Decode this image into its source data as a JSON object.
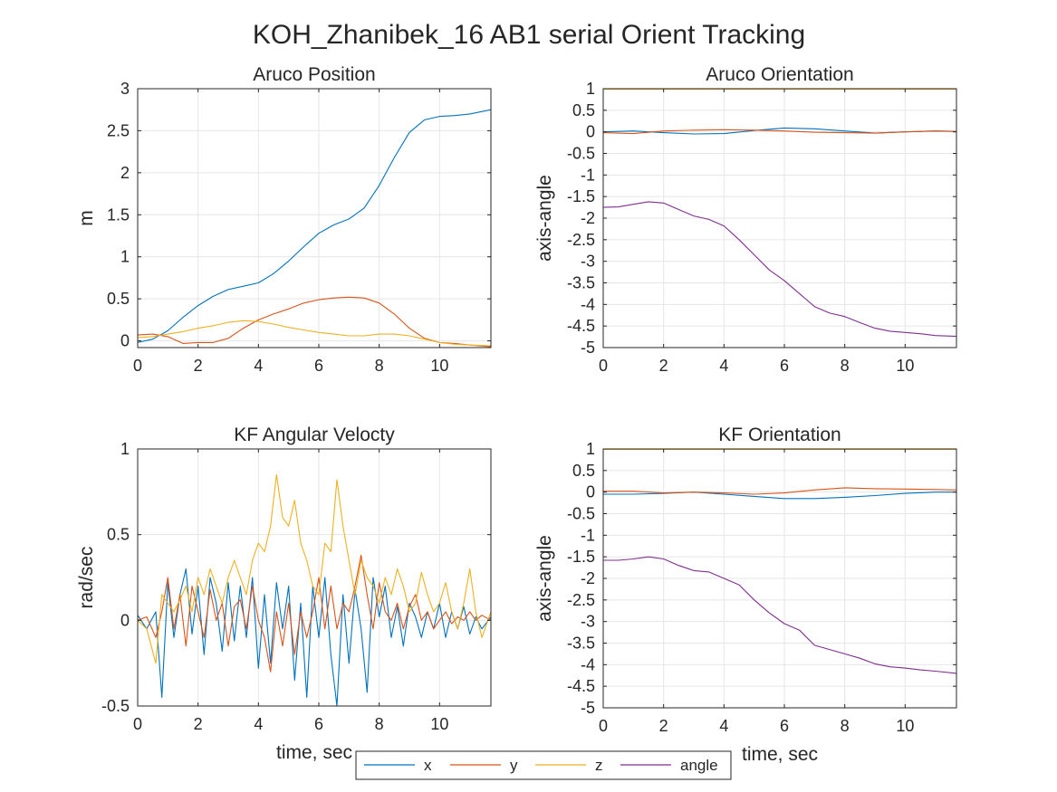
{
  "figure": {
    "suptitle": "KOH_Zhanibek_16 AB1 serial Orient Tracking"
  },
  "legend": {
    "placement": "bottom-center",
    "entries": [
      "x",
      "y",
      "z",
      "angle"
    ]
  },
  "colors": {
    "x": "#0072BD",
    "y": "#D95319",
    "z": "#EDB120",
    "angle": "#7E2F8E",
    "grid": "#e6e6e6",
    "axis": "#262626"
  },
  "chart_data": [
    {
      "type": "line",
      "title": "Aruco Position",
      "xlabel": "",
      "ylabel": "m",
      "xlim": [
        0,
        11.7
      ],
      "ylim": [
        -0.08,
        3
      ],
      "grid": true,
      "xticks": [
        0,
        2,
        4,
        6,
        8,
        10
      ],
      "xtick_labels": [
        "0",
        "2",
        "4",
        "6",
        "8",
        "10"
      ],
      "yticks": [
        0,
        0.5,
        1,
        1.5,
        2,
        2.5,
        3
      ],
      "ytick_labels": [
        "0",
        "0.5",
        "1",
        "1.5",
        "2",
        "2.5",
        "3"
      ],
      "series": [
        {
          "key": "x",
          "x": [
            0,
            0.5,
            1,
            1.5,
            2,
            2.5,
            3,
            3.5,
            4,
            4.5,
            5,
            5.5,
            6,
            6.5,
            7,
            7.5,
            8,
            8.5,
            9,
            9.5,
            10,
            10.5,
            11,
            11.7
          ],
          "y": [
            -0.02,
            0.02,
            0.12,
            0.28,
            0.42,
            0.53,
            0.61,
            0.65,
            0.69,
            0.8,
            0.95,
            1.12,
            1.28,
            1.38,
            1.45,
            1.58,
            1.85,
            2.18,
            2.48,
            2.63,
            2.67,
            2.68,
            2.7,
            2.75
          ]
        },
        {
          "key": "y",
          "x": [
            0,
            0.5,
            1,
            1.5,
            2,
            2.5,
            3,
            3.5,
            4,
            4.5,
            5,
            5.5,
            6,
            6.5,
            7,
            7.5,
            8,
            8.5,
            9,
            9.5,
            10,
            10.5,
            11,
            11.7
          ],
          "y": [
            0.07,
            0.08,
            0.05,
            -0.03,
            -0.02,
            -0.02,
            0.03,
            0.15,
            0.25,
            0.32,
            0.38,
            0.45,
            0.49,
            0.51,
            0.52,
            0.51,
            0.45,
            0.32,
            0.15,
            0.03,
            -0.02,
            -0.03,
            -0.05,
            -0.07
          ]
        },
        {
          "key": "z",
          "x": [
            0,
            0.5,
            1,
            1.5,
            2,
            2.5,
            3,
            3.5,
            4,
            4.5,
            5,
            5.5,
            6,
            6.5,
            7,
            7.5,
            8,
            8.5,
            9,
            9.5,
            10,
            10.5,
            11,
            11.7
          ],
          "y": [
            0.04,
            0.05,
            0.08,
            0.11,
            0.15,
            0.18,
            0.22,
            0.24,
            0.23,
            0.2,
            0.16,
            0.13,
            0.1,
            0.08,
            0.06,
            0.06,
            0.08,
            0.08,
            0.06,
            0.02,
            -0.02,
            -0.04,
            -0.05,
            -0.06
          ]
        }
      ]
    },
    {
      "type": "line",
      "title": "Aruco Orientation",
      "xlabel": "",
      "ylabel": "axis-angle",
      "xlim": [
        0,
        11.7
      ],
      "ylim": [
        -5,
        1
      ],
      "grid": true,
      "xticks": [
        0,
        2,
        4,
        6,
        8,
        10
      ],
      "xtick_labels": [
        "0",
        "2",
        "4",
        "6",
        "8",
        "10"
      ],
      "yticks": [
        1,
        0.5,
        0,
        -0.5,
        -1,
        -1.5,
        -2,
        -2.5,
        -3,
        -3.5,
        -4,
        -4.5,
        -5
      ],
      "ytick_labels": [
        "1",
        "0.5",
        "0",
        "-0.5",
        "-1",
        "-1.5",
        "-2",
        "-2.5",
        "-3",
        "-3.5",
        "-4",
        "-4.5",
        "-5"
      ],
      "series": [
        {
          "key": "x",
          "x": [
            0,
            1,
            2,
            3,
            4,
            5,
            6,
            7,
            8,
            9,
            10,
            11,
            11.7
          ],
          "y": [
            0.0,
            0.02,
            -0.02,
            -0.05,
            -0.04,
            0.03,
            0.09,
            0.07,
            0.02,
            -0.03,
            0.0,
            0.02,
            0.01
          ]
        },
        {
          "key": "y",
          "x": [
            0,
            1,
            2,
            3,
            4,
            5,
            6,
            7,
            8,
            9,
            10,
            11,
            11.7
          ],
          "y": [
            -0.02,
            -0.04,
            0.02,
            0.04,
            0.05,
            0.04,
            0.02,
            -0.01,
            -0.02,
            -0.03,
            0.0,
            0.02,
            0.01
          ]
        },
        {
          "key": "z",
          "x": [
            0,
            2,
            4,
            6,
            8,
            10,
            11.7
          ],
          "y": [
            0.99,
            0.99,
            0.99,
            0.99,
            0.99,
            0.99,
            0.99
          ]
        },
        {
          "key": "angle",
          "x": [
            0,
            0.5,
            1,
            1.5,
            2,
            2.5,
            3,
            3.5,
            4,
            4.5,
            5,
            5.5,
            6,
            6.5,
            7,
            7.5,
            8,
            8.5,
            9,
            9.5,
            10,
            10.5,
            11,
            11.7
          ],
          "y": [
            -1.75,
            -1.74,
            -1.68,
            -1.62,
            -1.65,
            -1.8,
            -1.95,
            -2.03,
            -2.18,
            -2.5,
            -2.85,
            -3.2,
            -3.45,
            -3.75,
            -4.05,
            -4.2,
            -4.28,
            -4.42,
            -4.55,
            -4.62,
            -4.65,
            -4.68,
            -4.72,
            -4.74
          ]
        }
      ]
    },
    {
      "type": "line",
      "title": "KF Angular Velocty",
      "xlabel": "time, sec",
      "ylabel": "rad/sec",
      "xlim": [
        0,
        11.7
      ],
      "ylim": [
        -0.5,
        1
      ],
      "grid": true,
      "xticks": [
        0,
        2,
        4,
        6,
        8,
        10
      ],
      "xtick_labels": [
        "0",
        "2",
        "4",
        "6",
        "8",
        "10"
      ],
      "yticks": [
        -0.5,
        0,
        0.5,
        1
      ],
      "ytick_labels": [
        "-0.5",
        "0",
        "0.5",
        "1"
      ],
      "series": [
        {
          "key": "x",
          "x": [
            0,
            0.3,
            0.6,
            0.8,
            1.0,
            1.2,
            1.4,
            1.6,
            1.8,
            2.0,
            2.2,
            2.4,
            2.6,
            2.8,
            3.0,
            3.2,
            3.4,
            3.6,
            3.8,
            4.0,
            4.2,
            4.4,
            4.6,
            4.8,
            5.0,
            5.2,
            5.4,
            5.6,
            5.8,
            6.0,
            6.2,
            6.4,
            6.6,
            6.8,
            7.0,
            7.2,
            7.4,
            7.6,
            7.8,
            8.0,
            8.2,
            8.4,
            8.6,
            8.8,
            9.0,
            9.2,
            9.4,
            9.6,
            9.8,
            10.0,
            10.2,
            10.4,
            10.6,
            10.8,
            11.0,
            11.2,
            11.4,
            11.7
          ],
          "y": [
            0.03,
            -0.05,
            0.05,
            -0.45,
            0.22,
            -0.1,
            0.15,
            0.3,
            -0.08,
            0.2,
            -0.2,
            0.25,
            0.1,
            -0.18,
            0.22,
            -0.12,
            0.2,
            -0.1,
            0.25,
            -0.28,
            0.15,
            -0.25,
            0.22,
            -0.05,
            0.2,
            -0.35,
            0.1,
            -0.45,
            0.2,
            -0.1,
            0.25,
            -0.2,
            -0.5,
            0.15,
            -0.25,
            0.18,
            -0.05,
            -0.42,
            0.25,
            0.02,
            0.2,
            -0.1,
            0.08,
            -0.15,
            0.1,
            0.02,
            -0.1,
            0.05,
            -0.05,
            0.1,
            -0.1,
            0.05,
            -0.05,
            0.08,
            -0.08,
            0.02,
            -0.05,
            0.02
          ]
        },
        {
          "key": "y",
          "x": [
            0,
            0.3,
            0.6,
            0.8,
            1.0,
            1.2,
            1.4,
            1.6,
            1.8,
            2.0,
            2.2,
            2.4,
            2.6,
            2.8,
            3.0,
            3.2,
            3.4,
            3.6,
            3.8,
            4.0,
            4.2,
            4.4,
            4.6,
            4.8,
            5.0,
            5.2,
            5.4,
            5.6,
            5.8,
            6.0,
            6.2,
            6.4,
            6.6,
            6.8,
            7.0,
            7.2,
            7.4,
            7.6,
            7.8,
            8.0,
            8.2,
            8.4,
            8.6,
            8.8,
            9.0,
            9.2,
            9.4,
            9.6,
            9.8,
            10.0,
            10.2,
            10.4,
            10.6,
            10.8,
            11.0,
            11.2,
            11.4,
            11.7
          ],
          "y": [
            0.0,
            0.02,
            -0.1,
            0.05,
            0.25,
            -0.05,
            0.15,
            -0.15,
            0.2,
            0.05,
            -0.1,
            0.18,
            0.0,
            0.1,
            -0.15,
            0.08,
            0.12,
            -0.05,
            0.2,
            0.0,
            -0.1,
            -0.3,
            0.05,
            -0.15,
            0.1,
            -0.2,
            0.05,
            -0.1,
            0.05,
            0.25,
            -0.05,
            0.2,
            -0.05,
            0.1,
            0.05,
            0.2,
            0.38,
            0.15,
            -0.05,
            0.22,
            0.05,
            0.0,
            0.1,
            -0.05,
            0.08,
            0.15,
            0.0,
            0.05,
            -0.05,
            0.0,
            0.05,
            -0.02,
            0.02,
            0.0,
            0.05,
            0.0,
            0.03,
            0.0
          ]
        },
        {
          "key": "z",
          "x": [
            0,
            0.3,
            0.6,
            0.8,
            1.0,
            1.2,
            1.4,
            1.6,
            1.8,
            2.0,
            2.2,
            2.4,
            2.6,
            2.8,
            3.0,
            3.2,
            3.4,
            3.6,
            3.8,
            4.0,
            4.2,
            4.4,
            4.6,
            4.8,
            5.0,
            5.2,
            5.4,
            5.6,
            5.8,
            6.0,
            6.2,
            6.4,
            6.6,
            6.8,
            7.0,
            7.2,
            7.4,
            7.6,
            7.8,
            8.0,
            8.2,
            8.4,
            8.6,
            8.8,
            9.0,
            9.2,
            9.4,
            9.6,
            9.8,
            10.0,
            10.2,
            10.4,
            10.6,
            10.8,
            11.0,
            11.2,
            11.4,
            11.7
          ],
          "y": [
            0.0,
            -0.05,
            -0.25,
            0.15,
            0.1,
            0.05,
            0.12,
            0.2,
            0.05,
            0.25,
            0.15,
            0.3,
            0.2,
            0.1,
            0.25,
            0.35,
            0.25,
            0.15,
            0.35,
            0.45,
            0.4,
            0.55,
            0.85,
            0.6,
            0.55,
            0.7,
            0.45,
            0.35,
            0.2,
            0.15,
            0.45,
            0.4,
            0.82,
            0.55,
            0.35,
            0.15,
            0.35,
            0.25,
            0.2,
            0.1,
            0.25,
            0.15,
            0.3,
            0.2,
            0.05,
            0.1,
            0.28,
            0.15,
            0.05,
            0.1,
            0.22,
            0.05,
            -0.05,
            0.1,
            0.3,
            0.05,
            -0.1,
            0.05
          ]
        }
      ]
    },
    {
      "type": "line",
      "title": "KF Orientation",
      "xlabel": "time, sec",
      "ylabel": "axis-angle",
      "xlim": [
        0,
        11.7
      ],
      "ylim": [
        -5,
        1
      ],
      "grid": true,
      "xticks": [
        0,
        2,
        4,
        6,
        8,
        10
      ],
      "xtick_labels": [
        "0",
        "2",
        "4",
        "6",
        "8",
        "10"
      ],
      "yticks": [
        1,
        0.5,
        0,
        -0.5,
        -1,
        -1.5,
        -2,
        -2.5,
        -3,
        -3.5,
        -4,
        -4.5,
        -5
      ],
      "ytick_labels": [
        "1",
        "0.5",
        "0",
        "-0.5",
        "-1",
        "-1.5",
        "-2",
        "-2.5",
        "-3",
        "-3.5",
        "-4",
        "-4.5",
        "-5"
      ],
      "series": [
        {
          "key": "x",
          "x": [
            0,
            1,
            2,
            3,
            4,
            5,
            6,
            7,
            8,
            9,
            10,
            11,
            11.7
          ],
          "y": [
            -0.05,
            -0.05,
            -0.03,
            0.0,
            -0.05,
            -0.1,
            -0.15,
            -0.15,
            -0.12,
            -0.08,
            -0.03,
            0.0,
            0.0
          ]
        },
        {
          "key": "y",
          "x": [
            0,
            1,
            2,
            3,
            4,
            5,
            6,
            7,
            8,
            9,
            10,
            11,
            11.7
          ],
          "y": [
            0.02,
            0.02,
            -0.02,
            0.0,
            -0.02,
            -0.05,
            -0.02,
            0.05,
            0.1,
            0.08,
            0.07,
            0.06,
            0.05
          ]
        },
        {
          "key": "z",
          "x": [
            0,
            2,
            4,
            6,
            8,
            10,
            11.7
          ],
          "y": [
            0.99,
            0.99,
            0.99,
            0.99,
            0.99,
            0.99,
            0.99
          ]
        },
        {
          "key": "angle",
          "x": [
            0,
            0.5,
            1,
            1.5,
            2,
            2.5,
            3,
            3.5,
            4,
            4.5,
            5,
            5.5,
            6,
            6.5,
            7,
            7.5,
            8,
            8.5,
            9,
            9.5,
            10,
            10.5,
            11,
            11.7
          ],
          "y": [
            -1.58,
            -1.58,
            -1.55,
            -1.5,
            -1.55,
            -1.7,
            -1.82,
            -1.85,
            -2.0,
            -2.15,
            -2.5,
            -2.8,
            -3.05,
            -3.2,
            -3.55,
            -3.65,
            -3.75,
            -3.85,
            -3.98,
            -4.05,
            -4.08,
            -4.12,
            -4.15,
            -4.2
          ]
        }
      ]
    }
  ]
}
